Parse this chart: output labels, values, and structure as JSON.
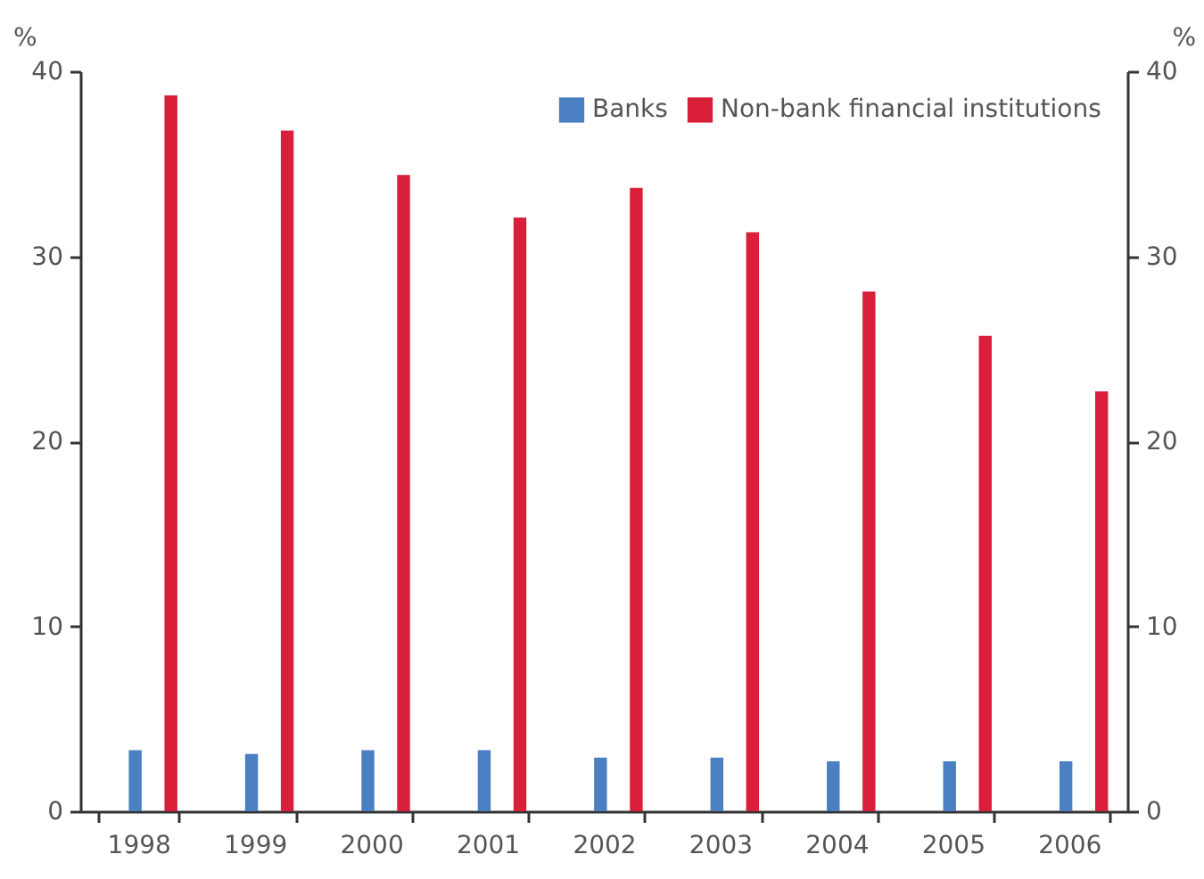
{
  "chart_data": {
    "type": "bar",
    "ylabel": "%",
    "y2label": "%",
    "categories": [
      "1998",
      "1999",
      "2000",
      "2001",
      "2002",
      "2003",
      "2004",
      "2005",
      "2006"
    ],
    "series": [
      {
        "name": "Banks",
        "color": "#4a7fc1",
        "values": [
          3.3,
          3.1,
          3.3,
          3.3,
          2.9,
          2.9,
          2.7,
          2.7,
          2.7
        ]
      },
      {
        "name": "Non-bank financial institutions",
        "color": "#da1f3a",
        "values": [
          38.7,
          36.8,
          34.4,
          32.1,
          33.7,
          31.3,
          28.1,
          25.7,
          22.7
        ]
      }
    ],
    "ylim": [
      0,
      40
    ],
    "yticks": [
      0,
      10,
      20,
      30,
      40
    ],
    "y2lim": [
      0,
      40
    ],
    "y2ticks": [
      0,
      10,
      20,
      30,
      40
    ],
    "legend": "top right",
    "grid": false
  }
}
